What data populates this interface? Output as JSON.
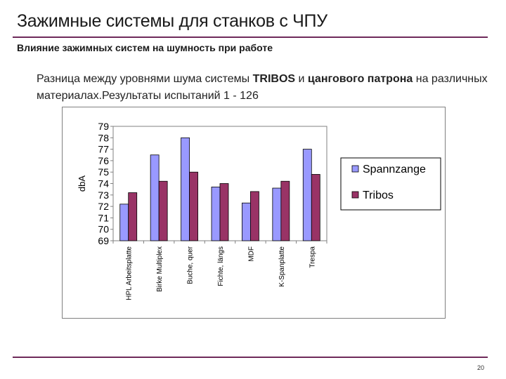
{
  "slide": {
    "title": "Зажимные системы для станков с ЧПУ",
    "subtitle": "Влияние зажимных систем на шумность при работе",
    "description": {
      "part1": "Разница между уровнями шума системы ",
      "bold1": "TRIBOS",
      "part2": " и ",
      "bold2": "цангового патрона",
      "part3": " на различных материалах.Результаты испытаний  1 - 126"
    },
    "page_number": "20"
  },
  "colors": {
    "accent_rule": "#6e2a5a",
    "spannzange": "#9999ff",
    "tribos": "#993366"
  },
  "chart_data": {
    "type": "bar",
    "categories": [
      "HPL Arbeitsplatte",
      "Birke Multiplex",
      "Buche, quer",
      "Fichte, längs",
      "MDF",
      "K-Spanplatte",
      "Trespa"
    ],
    "series": [
      {
        "name": "Spannzange",
        "color": "#9999ff",
        "values": [
          72.2,
          76.5,
          78.0,
          73.7,
          72.3,
          73.6,
          77.0
        ]
      },
      {
        "name": "Tribos",
        "color": "#993366",
        "values": [
          73.2,
          74.2,
          75.0,
          74.0,
          73.3,
          74.2,
          74.8
        ]
      }
    ],
    "ylabel": "dbA",
    "xlabel": "",
    "ylim": [
      69,
      79
    ],
    "yticks": [
      "69",
      "70",
      "71",
      "72",
      "73",
      "74",
      "75",
      "76",
      "77",
      "78",
      "79"
    ],
    "grid": false,
    "legend_position": "right"
  }
}
